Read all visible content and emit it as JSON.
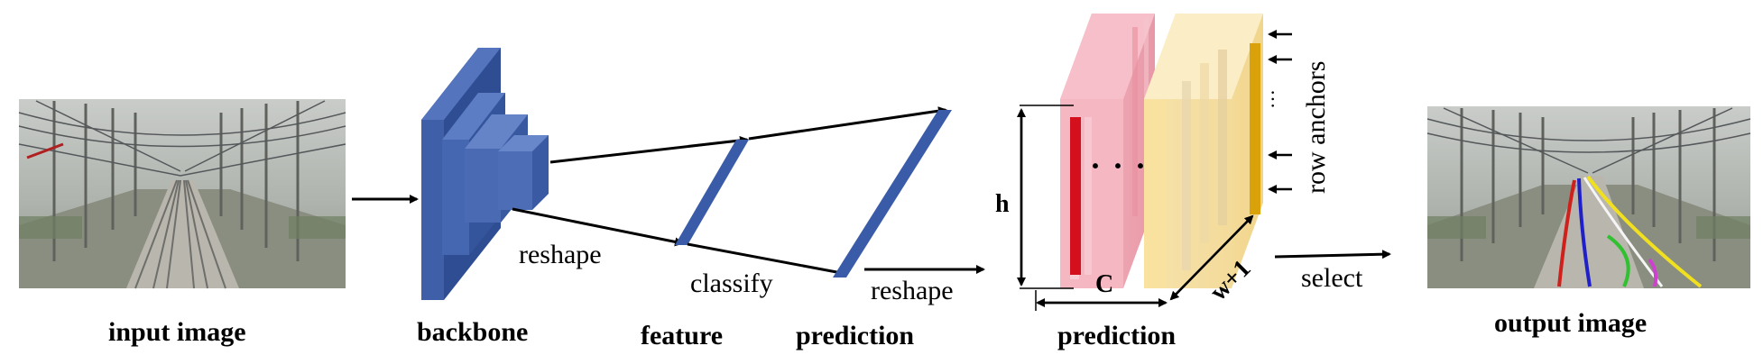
{
  "labels": {
    "input_image": "input image",
    "backbone": "backbone",
    "feature": "feature",
    "prediction_left": "prediction",
    "prediction_right": "prediction",
    "output_image": "output image",
    "reshape_1": "reshape",
    "classify": "classify",
    "reshape_2": "reshape",
    "select": "select",
    "h": "h",
    "c": "C",
    "w_plus_1": "w+1",
    "row_anchors": "row anchors",
    "ellipsis_h": "· · ·",
    "ellipsis_v": "···"
  },
  "colors": {
    "backbone_blue": "#3f5fa8",
    "backbone_dark": "#2c4a8f",
    "feature_blue": "#3a5ca8",
    "pink": "#f2a5b3",
    "red_channel": "#d4101c",
    "yellow": "#f6e2a6",
    "gold_channel": "#d9a20a",
    "lane_red": "#d0201c",
    "lane_blue": "#2020c8",
    "lane_yellow": "#f0e020",
    "lane_green": "#30c030",
    "lane_magenta": "#d040d0"
  }
}
